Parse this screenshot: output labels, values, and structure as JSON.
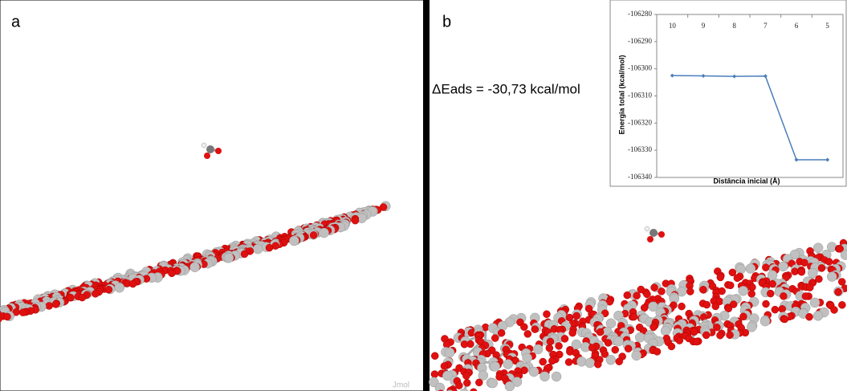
{
  "panels": [
    {
      "label": "a",
      "watermark": "Jmol"
    },
    {
      "label": "b",
      "annotation": "ΔEads = -30,73 kcal/mol"
    }
  ],
  "chart_data": {
    "type": "line",
    "xlabel": "Distância inicial (Å)",
    "ylabel": "Energia total (kcal/mol)",
    "categories": [
      "10",
      "9",
      "8",
      "7",
      "6",
      "5"
    ],
    "series": [
      {
        "color": "#4a7ebb",
        "values": [
          -106302.5,
          -106302.6,
          -106302.8,
          -106302.7,
          -106333.5,
          -106333.5
        ]
      }
    ],
    "ylim": [
      -106340,
      -106280
    ],
    "yticks": [
      -106280,
      -106290,
      -106300,
      -106310,
      -106320,
      -106330,
      -106340
    ],
    "grid": false
  }
}
